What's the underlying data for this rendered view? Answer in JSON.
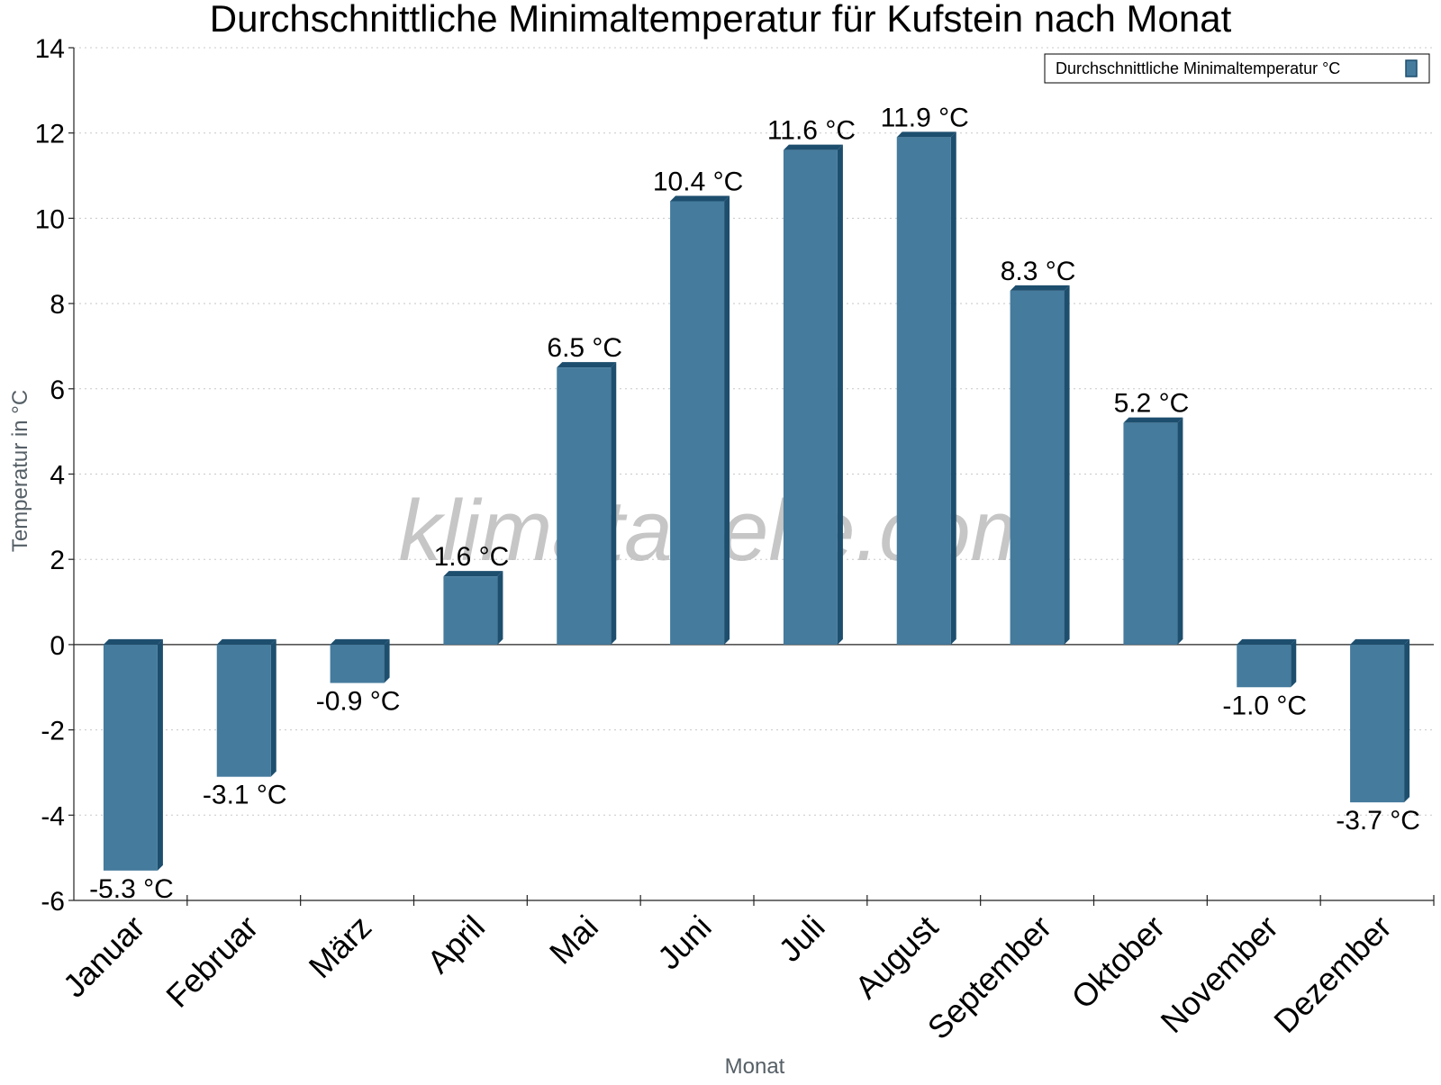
{
  "chart_data": {
    "type": "bar",
    "title": "Durchschnittliche Minimaltemperatur für Kufstein nach Monat",
    "xlabel": "Monat",
    "ylabel": "Temperatur in °C",
    "categories": [
      "Januar",
      "Februar",
      "März",
      "April",
      "Mai",
      "Juni",
      "Juli",
      "August",
      "September",
      "Oktober",
      "November",
      "Dezember"
    ],
    "series": [
      {
        "name": "Durchschnittliche Minimaltemperatur °C",
        "values": [
          -5.3,
          -3.1,
          -0.9,
          1.6,
          6.5,
          10.4,
          11.6,
          11.9,
          8.3,
          5.2,
          -1.0,
          -3.7
        ],
        "data_labels": [
          "-5.3 °C",
          "-3.1 °C",
          "-0.9 °C",
          "1.6 °C",
          "6.5 °C",
          "10.4 °C",
          "11.6 °C",
          "11.9 °C",
          "8.3 °C",
          "5.2 °C",
          "-1.0 °C",
          "-3.7 °C"
        ],
        "color": "#457b9d",
        "edge_color": "#1d4e6e"
      }
    ],
    "ylim": [
      -6,
      14
    ],
    "yticks": [
      -6,
      -4,
      -2,
      0,
      2,
      4,
      6,
      8,
      10,
      12,
      14
    ],
    "grid": true,
    "legend_position": "top-right"
  },
  "watermark": "klimatabelle.com"
}
